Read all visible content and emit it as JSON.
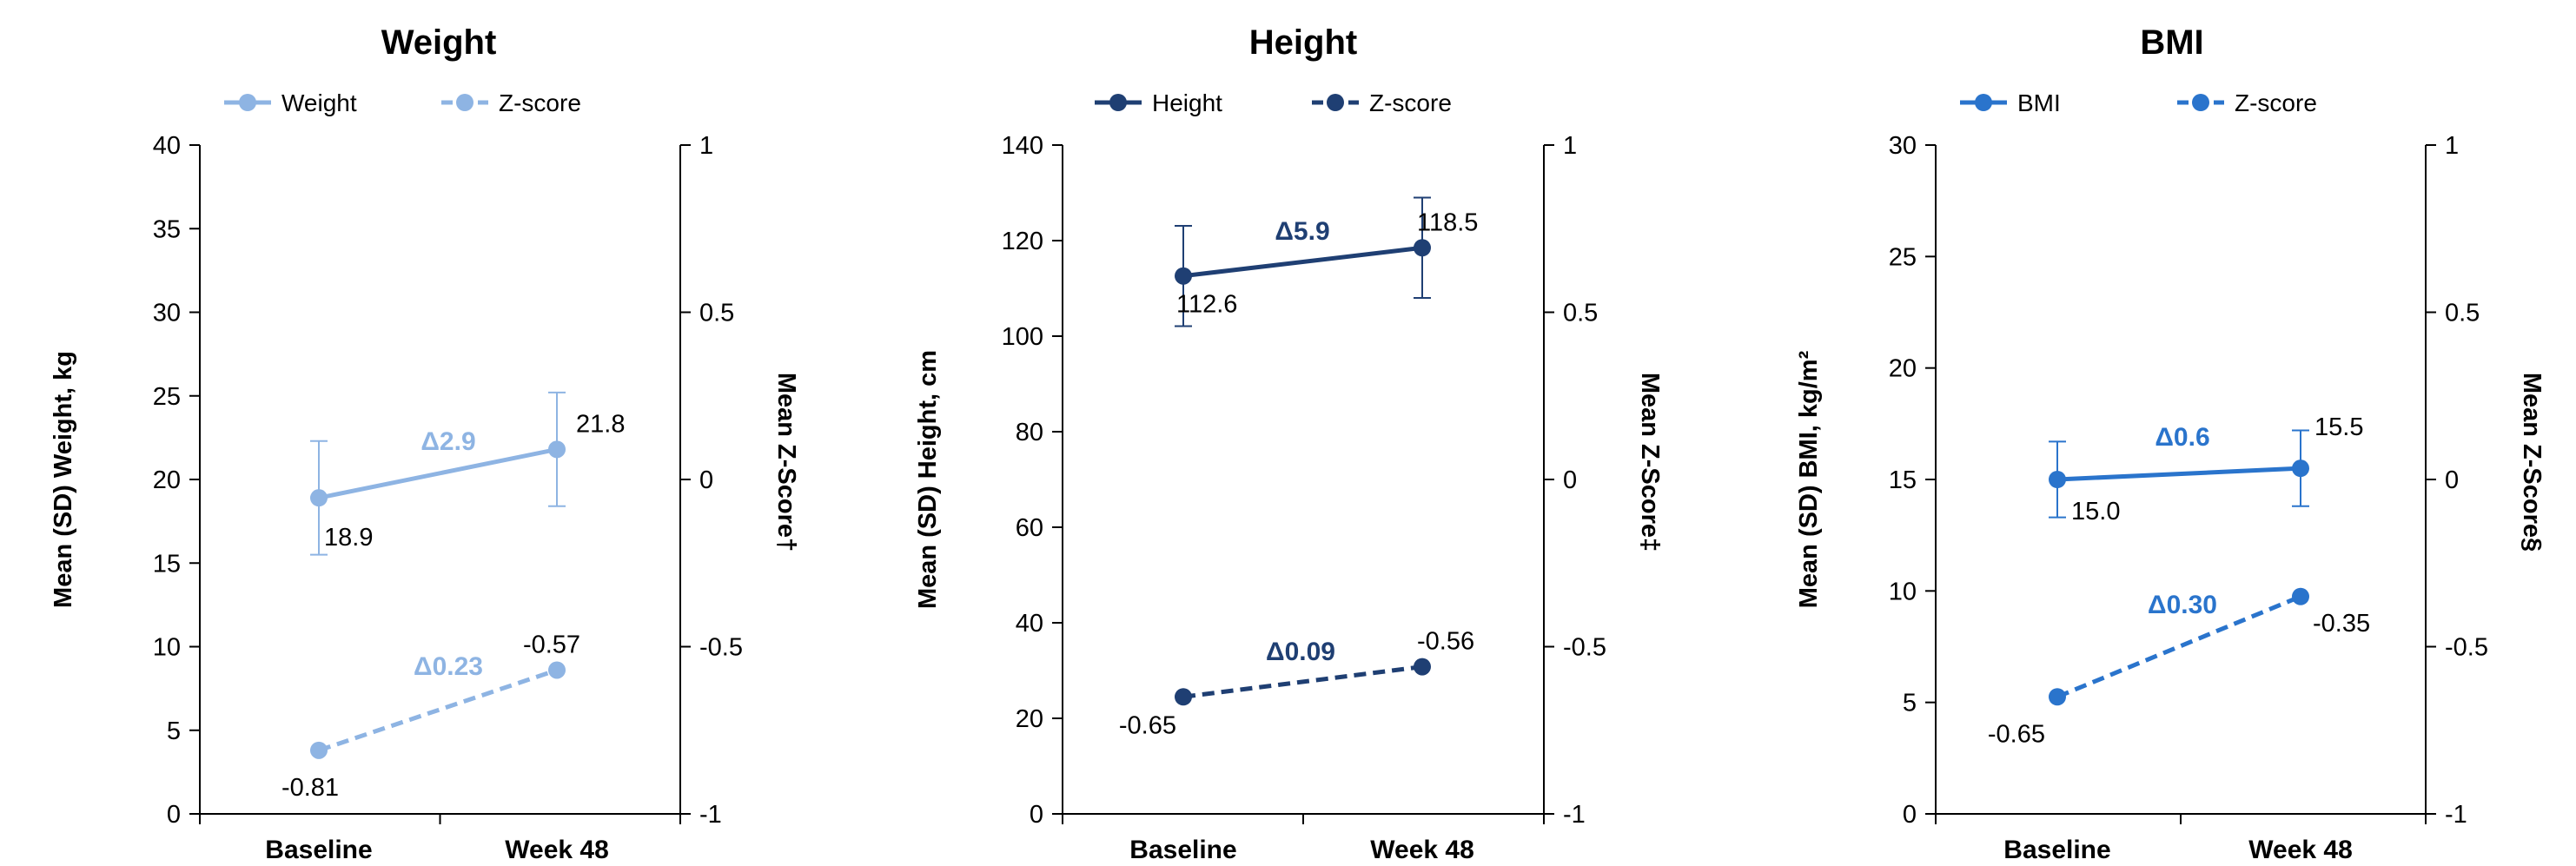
{
  "chart_data": [
    {
      "type": "line",
      "title": "Weight",
      "categories": [
        "Baseline",
        "Week 48"
      ],
      "ylabel": "Mean (SD) Weight, kg",
      "y2label": "Mean Z-Score†",
      "ylim": [
        0,
        40
      ],
      "yticks": [
        "0",
        "5",
        "10",
        "15",
        "20",
        "25",
        "30",
        "35",
        "40"
      ],
      "y2lim": [
        -1,
        1
      ],
      "y2ticks": [
        "-1",
        "-0.5",
        "0",
        "0.5",
        "1"
      ],
      "color": "#8eb4e3",
      "legend": [
        "Weight",
        "Z-score"
      ],
      "legend_position": "top",
      "series": [
        {
          "name": "Weight",
          "axis": "left",
          "style": "solid",
          "values": [
            18.9,
            21.8
          ],
          "err": [
            3.4,
            3.4
          ],
          "labels": [
            "18.9",
            "21.8"
          ]
        },
        {
          "name": "Z-score",
          "axis": "right",
          "style": "dashed",
          "values": [
            -0.81,
            -0.57
          ],
          "labels": [
            "-0.81",
            "-0.57"
          ]
        }
      ],
      "deltas": [
        "Δ2.9",
        "Δ0.23"
      ]
    },
    {
      "type": "line",
      "title": "Height",
      "categories": [
        "Baseline",
        "Week 48"
      ],
      "ylabel": "Mean (SD) Height, cm",
      "y2label": "Mean Z-Score‡",
      "ylim": [
        0,
        140
      ],
      "yticks": [
        "0",
        "20",
        "40",
        "60",
        "80",
        "100",
        "120",
        "140"
      ],
      "y2lim": [
        -1,
        1
      ],
      "y2ticks": [
        "-1",
        "-0.5",
        "0",
        "0.5",
        "1"
      ],
      "color": "#1f3f73",
      "legend": [
        "Height",
        "Z-score"
      ],
      "legend_position": "top",
      "series": [
        {
          "name": "Height",
          "axis": "left",
          "style": "solid",
          "values": [
            112.6,
            118.5
          ],
          "err": [
            10.5,
            10.5
          ],
          "labels": [
            "112.6",
            "118.5"
          ]
        },
        {
          "name": "Z-score",
          "axis": "right",
          "style": "dashed",
          "values": [
            -0.65,
            -0.56
          ],
          "labels": [
            "-0.65",
            "-0.56"
          ]
        }
      ],
      "deltas": [
        "Δ5.9",
        "Δ0.09"
      ]
    },
    {
      "type": "line",
      "title": "BMI",
      "categories": [
        "Baseline",
        "Week 48"
      ],
      "ylabel": "Mean (SD) BMI, kg/m²",
      "y2label": "Mean Z-Score§",
      "ylim": [
        0,
        30
      ],
      "yticks": [
        "0",
        "5",
        "10",
        "15",
        "20",
        "25",
        "30"
      ],
      "y2lim": [
        -1,
        1
      ],
      "y2ticks": [
        "-1",
        "-0.5",
        "0",
        "0.5",
        "1"
      ],
      "color": "#2a74cc",
      "legend": [
        "BMI",
        "Z-score"
      ],
      "legend_position": "top",
      "series": [
        {
          "name": "BMI",
          "axis": "left",
          "style": "solid",
          "values": [
            15.0,
            15.5
          ],
          "err": [
            1.7,
            1.7
          ],
          "labels": [
            "15.0",
            "15.5"
          ]
        },
        {
          "name": "Z-score",
          "axis": "right",
          "style": "dashed",
          "values": [
            -0.65,
            -0.35
          ],
          "labels": [
            "-0.65",
            "-0.35"
          ]
        }
      ],
      "deltas": [
        "Δ0.6",
        "Δ0.30"
      ]
    }
  ]
}
